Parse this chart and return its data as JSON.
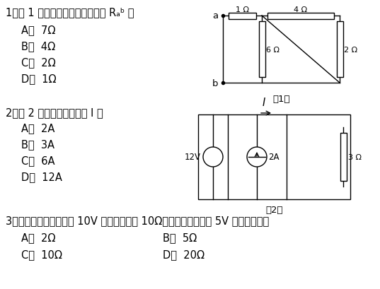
{
  "background_color": "#ffffff",
  "body_fontsize": 10.5,
  "q1_text_parts": [
    "1．题 1 图所示电路中的等效电阻 ",
    "R",
    "ab",
    " 为"
  ],
  "q1_plain": "1．题 1 图所示电路中的等效电阻 Rₐᵇ 为",
  "q1_options": [
    "A．  7Ω",
    "B．  4Ω",
    "C．  2Ω",
    "D．  1Ω"
  ],
  "q2_plain": "2．题 2 图所示电路的电流 I 为",
  "q2_options": [
    "A．  2A",
    "B．  3A",
    "C．  6A",
    "D．  12A"
  ],
  "q3_plain": "3．当某电阻两端电压为 10V 时，电阻值为 10Ω；当两端电压降至 5V 时，电阻值为",
  "q3_options_left": [
    "A．  2Ω",
    "C．  10Ω"
  ],
  "q3_options_right": [
    "B．  5Ω",
    "D．  20Ω"
  ],
  "label_ti1": "题1图",
  "label_ti2": "题2图"
}
